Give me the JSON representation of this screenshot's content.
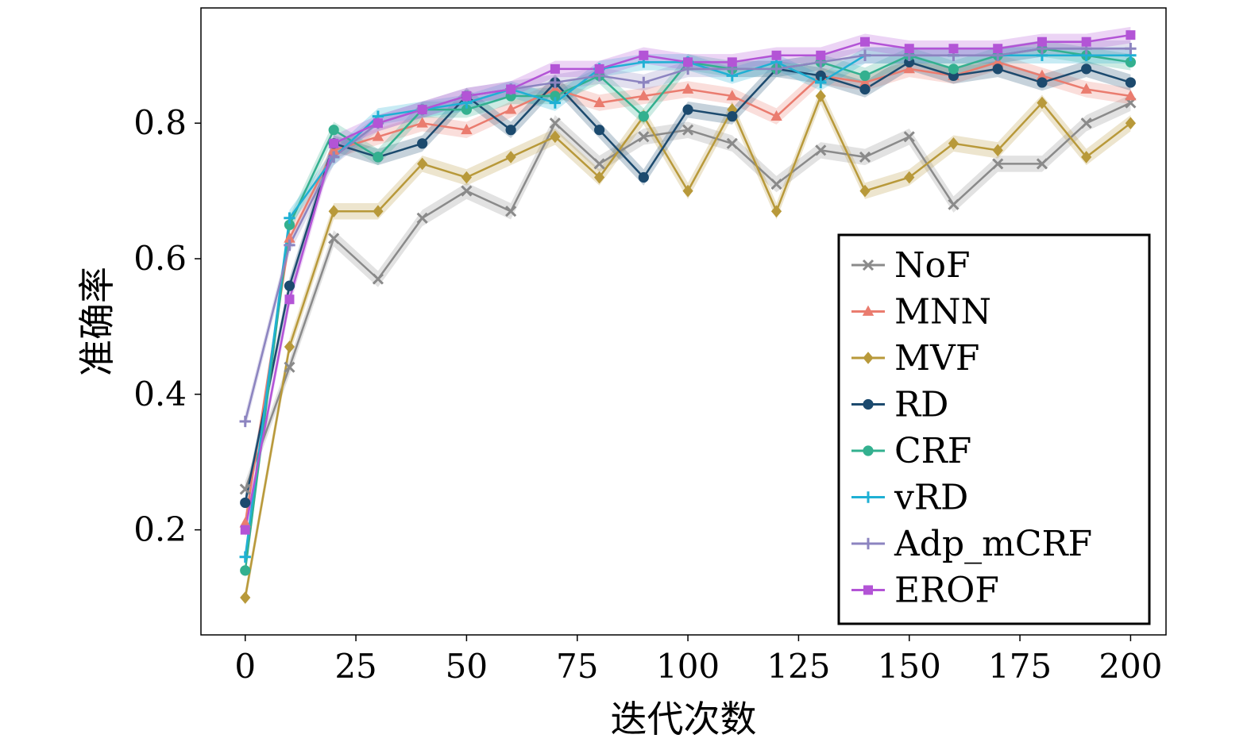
{
  "chart_data": {
    "type": "line",
    "title": "",
    "xlabel": "迭代次数",
    "ylabel": "准确率",
    "xlim": [
      -10,
      208
    ],
    "ylim": [
      0.045,
      0.97
    ],
    "xticks": [
      0,
      25,
      50,
      75,
      100,
      125,
      150,
      175,
      200
    ],
    "xtick_labels": [
      "0",
      "25",
      "50",
      "75",
      "100",
      "125",
      "150",
      "175",
      "200"
    ],
    "yticks": [
      0.2,
      0.4,
      0.6,
      0.8
    ],
    "ytick_labels": [
      "0.2",
      "0.4",
      "0.6",
      "0.8"
    ],
    "grid": false,
    "legend_position": "lower-right",
    "shaded_band": true,
    "x": [
      0,
      10,
      20,
      30,
      40,
      50,
      60,
      70,
      80,
      90,
      100,
      110,
      120,
      130,
      140,
      150,
      160,
      170,
      180,
      190,
      200
    ],
    "series": [
      {
        "name": "NoF",
        "color": "#8a8a8a",
        "marker": "x",
        "values": [
          0.26,
          0.44,
          0.63,
          0.57,
          0.66,
          0.7,
          0.67,
          0.8,
          0.74,
          0.78,
          0.79,
          0.77,
          0.71,
          0.76,
          0.75,
          0.78,
          0.68,
          0.74,
          0.74,
          0.8,
          0.83
        ]
      },
      {
        "name": "MNN",
        "color": "#ea7c6f",
        "marker": "triangle",
        "values": [
          0.21,
          0.63,
          0.76,
          0.78,
          0.8,
          0.79,
          0.82,
          0.85,
          0.83,
          0.84,
          0.85,
          0.84,
          0.81,
          0.87,
          0.86,
          0.88,
          0.87,
          0.89,
          0.87,
          0.85,
          0.84
        ]
      },
      {
        "name": "MVF",
        "color": "#b8993a",
        "marker": "diamond",
        "values": [
          0.1,
          0.47,
          0.67,
          0.67,
          0.74,
          0.72,
          0.75,
          0.78,
          0.72,
          0.81,
          0.7,
          0.82,
          0.67,
          0.84,
          0.7,
          0.72,
          0.77,
          0.76,
          0.83,
          0.75,
          0.8
        ]
      },
      {
        "name": "RD",
        "color": "#1c4a6e",
        "marker": "circle",
        "values": [
          0.24,
          0.56,
          0.77,
          0.75,
          0.77,
          0.84,
          0.79,
          0.86,
          0.79,
          0.72,
          0.82,
          0.81,
          0.88,
          0.87,
          0.85,
          0.89,
          0.87,
          0.88,
          0.86,
          0.88,
          0.86
        ]
      },
      {
        "name": "CRF",
        "color": "#33b08f",
        "marker": "circle",
        "values": [
          0.14,
          0.65,
          0.79,
          0.75,
          0.82,
          0.82,
          0.84,
          0.84,
          0.87,
          0.81,
          0.89,
          0.88,
          0.88,
          0.89,
          0.87,
          0.9,
          0.88,
          0.9,
          0.91,
          0.9,
          0.89
        ]
      },
      {
        "name": "vRD",
        "color": "#1fb0d4",
        "marker": "plus",
        "values": [
          0.16,
          0.66,
          0.75,
          0.81,
          0.82,
          0.83,
          0.85,
          0.83,
          0.88,
          0.89,
          0.89,
          0.87,
          0.89,
          0.86,
          0.9,
          0.9,
          0.9,
          0.9,
          0.9,
          0.9,
          0.9
        ]
      },
      {
        "name": "Adp_mCRF",
        "color": "#8c84c0",
        "marker": "plus",
        "values": [
          0.36,
          0.62,
          0.75,
          0.8,
          0.82,
          0.84,
          0.85,
          0.86,
          0.87,
          0.86,
          0.88,
          0.88,
          0.88,
          0.89,
          0.9,
          0.9,
          0.9,
          0.9,
          0.91,
          0.91,
          0.91
        ]
      },
      {
        "name": "EROF",
        "color": "#b354d6",
        "marker": "square",
        "values": [
          0.2,
          0.54,
          0.77,
          0.8,
          0.82,
          0.84,
          0.85,
          0.88,
          0.88,
          0.9,
          0.89,
          0.89,
          0.9,
          0.9,
          0.92,
          0.91,
          0.91,
          0.91,
          0.92,
          0.92,
          0.93
        ]
      }
    ]
  }
}
